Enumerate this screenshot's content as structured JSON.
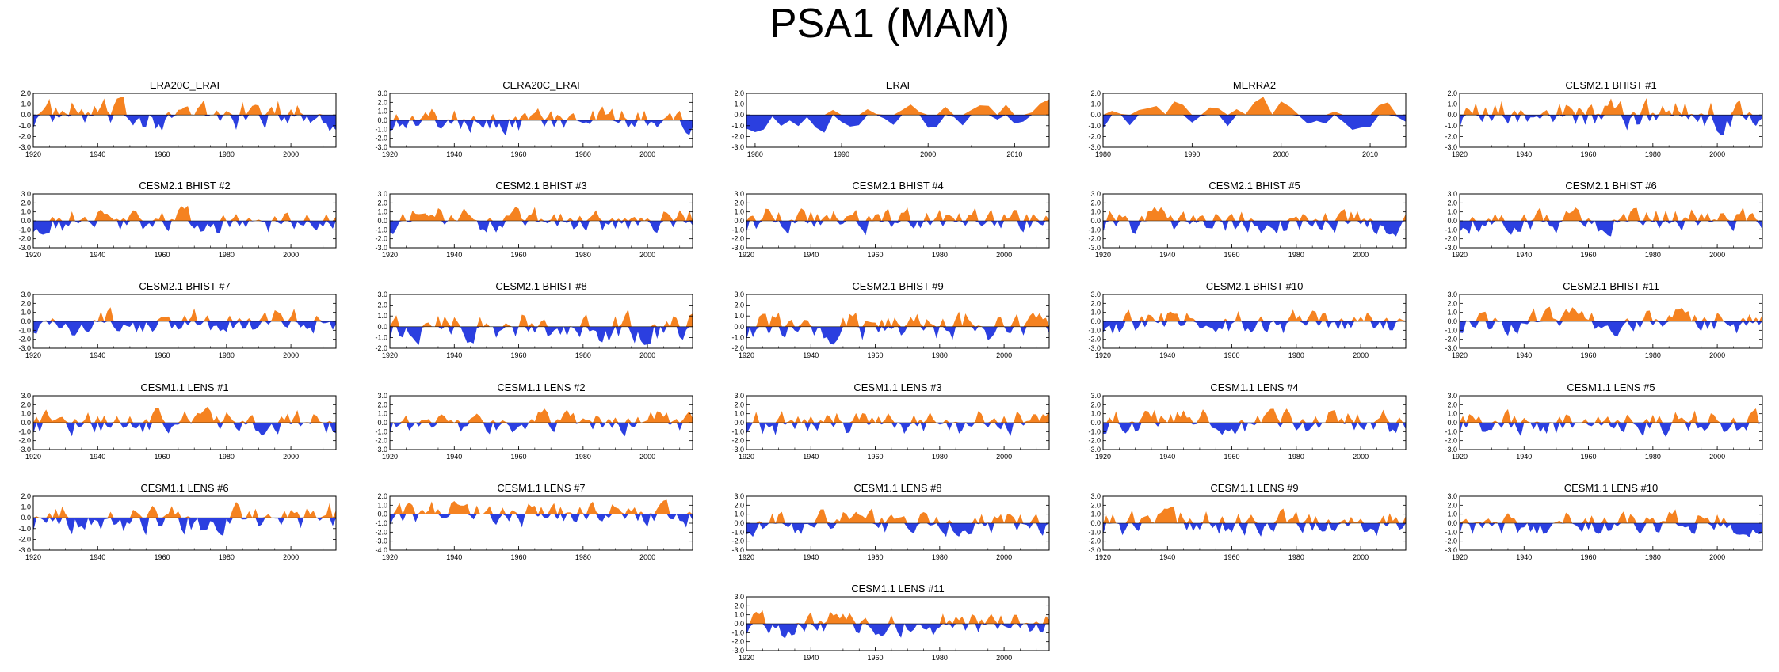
{
  "title": "PSA1 (MAM)",
  "colors": {
    "positive": "#f58220",
    "negative": "#2b3fe0"
  },
  "chart_data": {
    "type": "area",
    "y_tick_labels_a": [
      "3.0",
      "2.0",
      "1.0",
      "0.0",
      "-1.0",
      "-2.0",
      "-3.0"
    ],
    "panels": [
      {
        "title": "ERA20C_ERAI",
        "x_start": 1920,
        "x_end": 2014,
        "x_ticks": [
          1920,
          1940,
          1960,
          1980,
          2000
        ],
        "ylim": [
          -3,
          2
        ],
        "y_ticks": [
          "2.0",
          "1.0",
          "0.0",
          "-1.0",
          "-2.0",
          "-3.0"
        ]
      },
      {
        "title": "CERA20C_ERAI",
        "x_start": 1920,
        "x_end": 2014,
        "x_ticks": [
          1920,
          1940,
          1960,
          1980,
          2000
        ],
        "ylim": [
          -3,
          3
        ],
        "y_ticks": [
          "3.0",
          "2.0",
          "1.0",
          "0.0",
          "-1.0",
          "-2.0",
          "-3.0"
        ]
      },
      {
        "title": "ERAI",
        "x_start": 1979,
        "x_end": 2014,
        "x_ticks": [
          1980,
          1990,
          2000,
          2010
        ],
        "ylim": [
          -3,
          2
        ],
        "y_ticks": [
          "2.0",
          "1.0",
          "0.0",
          "-1.0",
          "-2.0",
          "-3.0"
        ]
      },
      {
        "title": "MERRA2",
        "x_start": 1980,
        "x_end": 2014,
        "x_ticks": [
          1980,
          1990,
          2000,
          2010
        ],
        "ylim": [
          -3,
          2
        ],
        "y_ticks": [
          "2.0",
          "1.0",
          "0.0",
          "-1.0",
          "-2.0",
          "-3.0"
        ]
      },
      {
        "title": "CESM2.1 BHIST #1",
        "x_start": 1920,
        "x_end": 2014,
        "x_ticks": [
          1920,
          1940,
          1960,
          1980,
          2000
        ],
        "ylim": [
          -3,
          2
        ],
        "y_ticks": [
          "2.0",
          "1.0",
          "0.0",
          "-1.0",
          "-2.0",
          "-3.0"
        ]
      },
      {
        "title": "CESM2.1 BHIST #2",
        "x_start": 1920,
        "x_end": 2014,
        "x_ticks": [
          1920,
          1940,
          1960,
          1980,
          2000
        ],
        "ylim": [
          -3,
          3
        ],
        "y_ticks": [
          "3.0",
          "2.0",
          "1.0",
          "0.0",
          "-1.0",
          "-2.0",
          "-3.0"
        ]
      },
      {
        "title": "CESM2.1 BHIST #3",
        "x_start": 1920,
        "x_end": 2014,
        "x_ticks": [
          1920,
          1940,
          1960,
          1980,
          2000
        ],
        "ylim": [
          -3,
          3
        ],
        "y_ticks": [
          "3.0",
          "2.0",
          "1.0",
          "0.0",
          "-1.0",
          "-2.0",
          "-3.0"
        ]
      },
      {
        "title": "CESM2.1 BHIST #4",
        "x_start": 1920,
        "x_end": 2014,
        "x_ticks": [
          1920,
          1940,
          1960,
          1980,
          2000
        ],
        "ylim": [
          -3,
          3
        ],
        "y_ticks": [
          "3.0",
          "2.0",
          "1.0",
          "0.0",
          "-1.0",
          "-2.0",
          "-3.0"
        ]
      },
      {
        "title": "CESM2.1 BHIST #5",
        "x_start": 1920,
        "x_end": 2014,
        "x_ticks": [
          1920,
          1940,
          1960,
          1980,
          2000
        ],
        "ylim": [
          -3,
          3
        ],
        "y_ticks": [
          "3.0",
          "2.0",
          "1.0",
          "0.0",
          "-1.0",
          "-2.0",
          "-3.0"
        ]
      },
      {
        "title": "CESM2.1 BHIST #6",
        "x_start": 1920,
        "x_end": 2014,
        "x_ticks": [
          1920,
          1940,
          1960,
          1980,
          2000
        ],
        "ylim": [
          -3,
          3
        ],
        "y_ticks": [
          "3.0",
          "2.0",
          "1.0",
          "0.0",
          "-1.0",
          "-2.0",
          "-3.0"
        ]
      },
      {
        "title": "CESM2.1 BHIST #7",
        "x_start": 1920,
        "x_end": 2014,
        "x_ticks": [
          1920,
          1940,
          1960,
          1980,
          2000
        ],
        "ylim": [
          -3,
          3
        ],
        "y_ticks": [
          "3.0",
          "2.0",
          "1.0",
          "0.0",
          "-1.0",
          "-2.0",
          "-3.0"
        ]
      },
      {
        "title": "CESM2.1 BHIST #8",
        "x_start": 1920,
        "x_end": 2014,
        "x_ticks": [
          1920,
          1940,
          1960,
          1980,
          2000
        ],
        "ylim": [
          -2,
          3
        ],
        "y_ticks": [
          "3.0",
          "2.0",
          "1.0",
          "0.0",
          "-1.0",
          "-2.0"
        ]
      },
      {
        "title": "CESM2.1 BHIST #9",
        "x_start": 1920,
        "x_end": 2014,
        "x_ticks": [
          1920,
          1940,
          1960,
          1980,
          2000
        ],
        "ylim": [
          -2,
          3
        ],
        "y_ticks": [
          "3.0",
          "2.0",
          "1.0",
          "0.0",
          "-1.0",
          "-2.0"
        ]
      },
      {
        "title": "CESM2.1 BHIST #10",
        "x_start": 1920,
        "x_end": 2014,
        "x_ticks": [
          1920,
          1940,
          1960,
          1980,
          2000
        ],
        "ylim": [
          -3,
          3
        ],
        "y_ticks": [
          "3.0",
          "2.0",
          "1.0",
          "0.0",
          "-1.0",
          "-2.0",
          "-3.0"
        ]
      },
      {
        "title": "CESM2.1 BHIST #11",
        "x_start": 1920,
        "x_end": 2014,
        "x_ticks": [
          1920,
          1940,
          1960,
          1980,
          2000
        ],
        "ylim": [
          -3,
          3
        ],
        "y_ticks": [
          "3.0",
          "2.0",
          "1.0",
          "0.0",
          "-1.0",
          "-2.0",
          "-3.0"
        ]
      },
      {
        "title": "CESM1.1 LENS #1",
        "x_start": 1920,
        "x_end": 2014,
        "x_ticks": [
          1920,
          1940,
          1960,
          1980,
          2000
        ],
        "ylim": [
          -3,
          3
        ],
        "y_ticks": [
          "3.0",
          "2.0",
          "1.0",
          "0.0",
          "-1.0",
          "-2.0",
          "-3.0"
        ]
      },
      {
        "title": "CESM1.1 LENS #2",
        "x_start": 1920,
        "x_end": 2014,
        "x_ticks": [
          1920,
          1940,
          1960,
          1980,
          2000
        ],
        "ylim": [
          -3,
          3
        ],
        "y_ticks": [
          "3.0",
          "2.0",
          "1.0",
          "0.0",
          "-1.0",
          "-2.0",
          "-3.0"
        ]
      },
      {
        "title": "CESM1.1 LENS #3",
        "x_start": 1920,
        "x_end": 2014,
        "x_ticks": [
          1920,
          1940,
          1960,
          1980,
          2000
        ],
        "ylim": [
          -3,
          3
        ],
        "y_ticks": [
          "3.0",
          "2.0",
          "1.0",
          "0.0",
          "-1.0",
          "-2.0",
          "-3.0"
        ]
      },
      {
        "title": "CESM1.1 LENS #4",
        "x_start": 1920,
        "x_end": 2014,
        "x_ticks": [
          1920,
          1940,
          1960,
          1980,
          2000
        ],
        "ylim": [
          -3,
          3
        ],
        "y_ticks": [
          "3.0",
          "2.0",
          "1.0",
          "0.0",
          "-1.0",
          "-2.0",
          "-3.0"
        ]
      },
      {
        "title": "CESM1.1 LENS #5",
        "x_start": 1920,
        "x_end": 2014,
        "x_ticks": [
          1920,
          1940,
          1960,
          1980,
          2000
        ],
        "ylim": [
          -3,
          3
        ],
        "y_ticks": [
          "3.0",
          "2.0",
          "1.0",
          "0.0",
          "-1.0",
          "-2.0",
          "-3.0"
        ]
      },
      {
        "title": "CESM1.1 LENS #6",
        "x_start": 1920,
        "x_end": 2014,
        "x_ticks": [
          1920,
          1940,
          1960,
          1980,
          2000
        ],
        "ylim": [
          -3,
          2
        ],
        "y_ticks": [
          "2.0",
          "1.0",
          "0.0",
          "-1.0",
          "-2.0",
          "-3.0"
        ]
      },
      {
        "title": "CESM1.1 LENS #7",
        "x_start": 1920,
        "x_end": 2014,
        "x_ticks": [
          1920,
          1940,
          1960,
          1980,
          2000
        ],
        "ylim": [
          -4,
          2
        ],
        "y_ticks": [
          "2.0",
          "1.0",
          "0.0",
          "-1.0",
          "-2.0",
          "-3.0",
          "-4.0"
        ]
      },
      {
        "title": "CESM1.1 LENS #8",
        "x_start": 1920,
        "x_end": 2014,
        "x_ticks": [
          1920,
          1940,
          1960,
          1980,
          2000
        ],
        "ylim": [
          -3,
          3
        ],
        "y_ticks": [
          "3.0",
          "2.0",
          "1.0",
          "0.0",
          "-1.0",
          "-2.0",
          "-3.0"
        ]
      },
      {
        "title": "CESM1.1 LENS #9",
        "x_start": 1920,
        "x_end": 2014,
        "x_ticks": [
          1920,
          1940,
          1960,
          1980,
          2000
        ],
        "ylim": [
          -3,
          3
        ],
        "y_ticks": [
          "3.0",
          "2.0",
          "1.0",
          "0.0",
          "-1.0",
          "-2.0",
          "-3.0"
        ]
      },
      {
        "title": "CESM1.1 LENS #10",
        "x_start": 1920,
        "x_end": 2014,
        "x_ticks": [
          1920,
          1940,
          1960,
          1980,
          2000
        ],
        "ylim": [
          -3,
          3
        ],
        "y_ticks": [
          "3.0",
          "2.0",
          "1.0",
          "0.0",
          "-1.0",
          "-2.0",
          "-3.0"
        ]
      },
      {
        "title": "CESM1.1 LENS #11",
        "x_start": 1920,
        "x_end": 2014,
        "x_ticks": [
          1920,
          1940,
          1960,
          1980,
          2000
        ],
        "ylim": [
          -3,
          3
        ],
        "y_ticks": [
          "3.0",
          "2.0",
          "1.0",
          "0.0",
          "-1.0",
          "-2.0",
          "-3.0"
        ]
      }
    ]
  }
}
